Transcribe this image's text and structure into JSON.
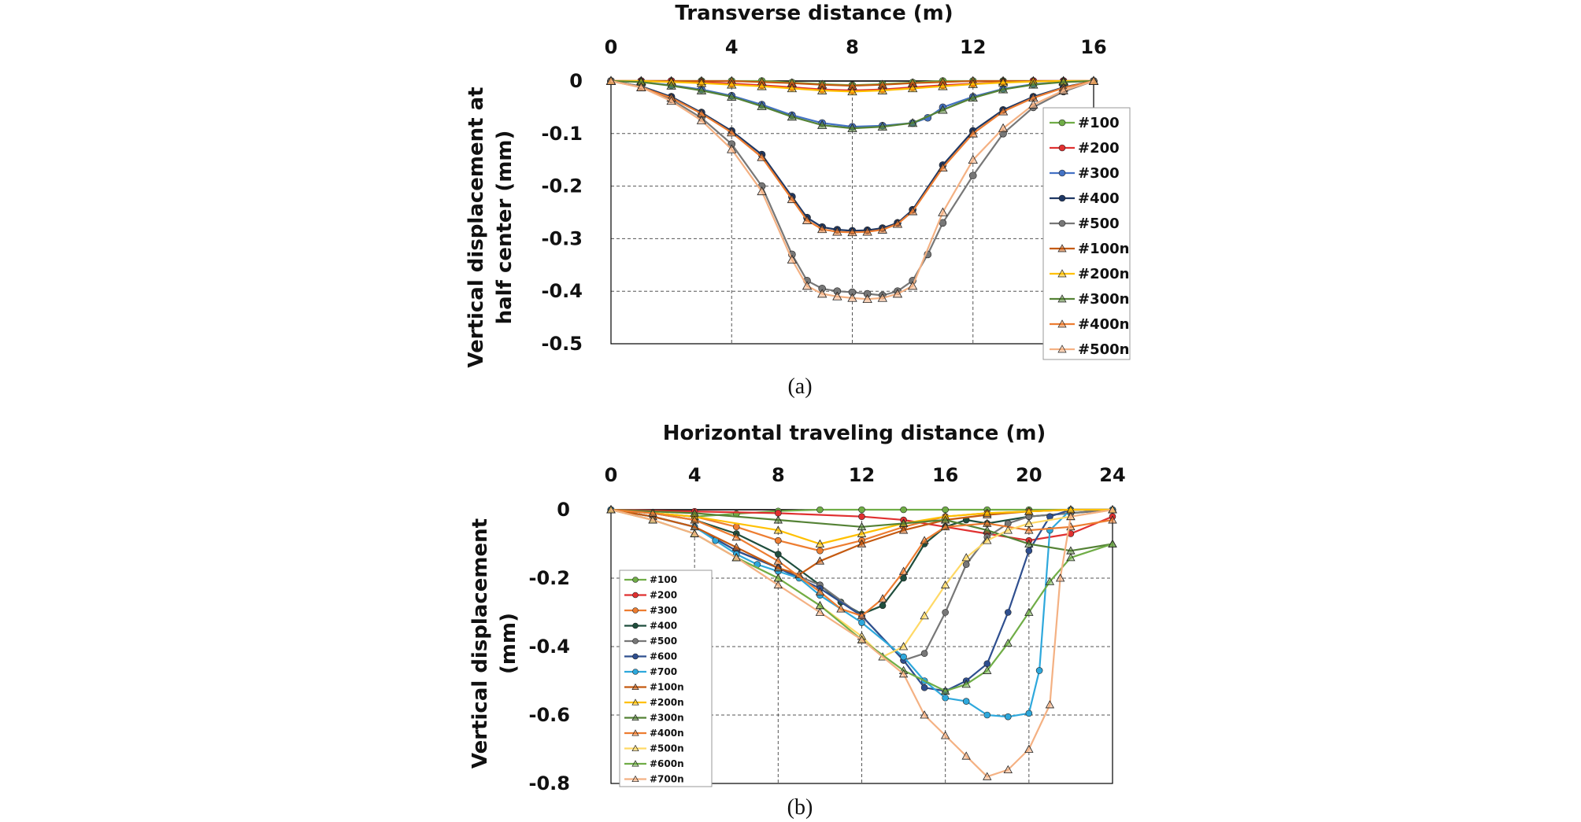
{
  "chart_data": [
    {
      "type": "line",
      "caption": "(a)",
      "xlabel": "Transverse distance (m)",
      "ylabel_lines": [
        "Vertical displacement at",
        "half center (mm)"
      ],
      "xlim": [
        0,
        16
      ],
      "ylim": [
        -0.5,
        0
      ],
      "x_ticks": [
        "0",
        "4",
        "8",
        "12",
        "16"
      ],
      "y_ticks": [
        "0",
        "-0.1",
        "-0.2",
        "-0.3",
        "-0.4",
        "-0.5"
      ],
      "grid": true,
      "legend_position": "right",
      "series": [
        {
          "name": "#100",
          "color": "#70AD47",
          "marker": "circle",
          "x": [
            0,
            1,
            2,
            3,
            4,
            5,
            6,
            7,
            8,
            9,
            10,
            11,
            12,
            13,
            14,
            15,
            16
          ],
          "y": [
            0,
            0,
            0,
            0,
            0,
            0,
            -0.003,
            -0.006,
            -0.008,
            -0.006,
            -0.003,
            0,
            0,
            0,
            0,
            0,
            0
          ]
        },
        {
          "name": "#200",
          "color": "#E03030",
          "marker": "circle",
          "x": [
            0,
            1,
            2,
            3,
            4,
            5,
            6,
            7,
            8,
            9,
            10,
            11,
            12,
            13,
            14,
            15,
            16
          ],
          "y": [
            0,
            0,
            0,
            -0.002,
            -0.005,
            -0.008,
            -0.012,
            -0.016,
            -0.018,
            -0.016,
            -0.012,
            -0.008,
            -0.005,
            -0.002,
            0,
            0,
            0
          ]
        },
        {
          "name": "#300",
          "color": "#4472C4",
          "marker": "circle",
          "x": [
            0,
            1,
            2,
            3,
            4,
            5,
            6,
            7,
            8,
            9,
            10,
            10.5,
            11,
            12,
            13,
            14,
            15,
            16
          ],
          "y": [
            0,
            -0.002,
            -0.008,
            -0.016,
            -0.028,
            -0.045,
            -0.065,
            -0.08,
            -0.087,
            -0.085,
            -0.08,
            -0.07,
            -0.05,
            -0.03,
            -0.015,
            -0.006,
            -0.002,
            0
          ]
        },
        {
          "name": "#400",
          "color": "#1F3864",
          "marker": "circle",
          "x": [
            0,
            1,
            2,
            3,
            4,
            5,
            6,
            6.5,
            7,
            7.5,
            8,
            8.5,
            9,
            9.5,
            10,
            11,
            12,
            13,
            14,
            15,
            16
          ],
          "y": [
            0,
            -0.01,
            -0.03,
            -0.06,
            -0.095,
            -0.14,
            -0.22,
            -0.26,
            -0.278,
            -0.283,
            -0.285,
            -0.284,
            -0.28,
            -0.27,
            -0.245,
            -0.16,
            -0.095,
            -0.055,
            -0.03,
            -0.012,
            0
          ]
        },
        {
          "name": "#500",
          "color": "#777777",
          "marker": "circle",
          "x": [
            0,
            1,
            2,
            3,
            4,
            5,
            6,
            6.5,
            7,
            7.5,
            8,
            8.5,
            9,
            9.5,
            10,
            10.5,
            11,
            12,
            13,
            14,
            15,
            16
          ],
          "y": [
            0,
            -0.01,
            -0.035,
            -0.07,
            -0.12,
            -0.2,
            -0.33,
            -0.38,
            -0.395,
            -0.4,
            -0.402,
            -0.405,
            -0.408,
            -0.4,
            -0.38,
            -0.33,
            -0.27,
            -0.18,
            -0.1,
            -0.05,
            -0.02,
            0
          ]
        },
        {
          "name": "#100n",
          "color": "#C55A11",
          "marker": "triangle",
          "x": [
            0,
            1,
            2,
            3,
            4,
            5,
            6,
            7,
            8,
            9,
            10,
            11,
            12,
            13,
            14,
            15,
            16
          ],
          "y": [
            0,
            0,
            0,
            0,
            0,
            -0.002,
            -0.004,
            -0.007,
            -0.009,
            -0.007,
            -0.004,
            -0.002,
            0,
            0,
            0,
            0,
            0
          ]
        },
        {
          "name": "#200n",
          "color": "#FFC000",
          "marker": "triangle",
          "x": [
            0,
            1,
            2,
            3,
            4,
            5,
            6,
            7,
            8,
            9,
            10,
            11,
            12,
            13,
            14,
            15,
            16
          ],
          "y": [
            0,
            0,
            -0.002,
            -0.004,
            -0.007,
            -0.01,
            -0.014,
            -0.018,
            -0.02,
            -0.018,
            -0.014,
            -0.01,
            -0.006,
            -0.003,
            -0.001,
            0,
            0
          ]
        },
        {
          "name": "#300n",
          "color": "#548235",
          "marker": "triangle",
          "x": [
            0,
            1,
            2,
            3,
            4,
            5,
            6,
            7,
            8,
            9,
            10,
            11,
            12,
            13,
            14,
            15,
            16
          ],
          "y": [
            0,
            -0.002,
            -0.009,
            -0.018,
            -0.03,
            -0.048,
            -0.068,
            -0.084,
            -0.09,
            -0.087,
            -0.08,
            -0.055,
            -0.032,
            -0.016,
            -0.007,
            -0.002,
            0
          ]
        },
        {
          "name": "#400n",
          "color": "#ED7D31",
          "marker": "triangle",
          "x": [
            0,
            1,
            2,
            3,
            4,
            5,
            6,
            6.5,
            7,
            7.5,
            8,
            8.5,
            9,
            9.5,
            10,
            11,
            12,
            13,
            14,
            15,
            16
          ],
          "y": [
            0,
            -0.012,
            -0.032,
            -0.062,
            -0.098,
            -0.145,
            -0.225,
            -0.265,
            -0.282,
            -0.287,
            -0.288,
            -0.287,
            -0.283,
            -0.272,
            -0.248,
            -0.165,
            -0.1,
            -0.058,
            -0.032,
            -0.013,
            0
          ]
        },
        {
          "name": "#500n",
          "color": "#F4B183",
          "marker": "triangle",
          "x": [
            0,
            1,
            2,
            3,
            4,
            5,
            6,
            6.5,
            7,
            7.5,
            8,
            8.5,
            9,
            9.5,
            10,
            11,
            12,
            13,
            14,
            15,
            16
          ],
          "y": [
            0,
            -0.012,
            -0.038,
            -0.075,
            -0.13,
            -0.21,
            -0.34,
            -0.39,
            -0.405,
            -0.41,
            -0.413,
            -0.415,
            -0.413,
            -0.405,
            -0.39,
            -0.25,
            -0.15,
            -0.09,
            -0.045,
            -0.018,
            0
          ]
        }
      ]
    },
    {
      "type": "line",
      "caption": "(b)",
      "xlabel": "Horizontal traveling distance (m)",
      "ylabel_lines": [
        "Vertical displacement",
        "(mm)"
      ],
      "xlim": [
        0,
        24
      ],
      "ylim": [
        -0.8,
        0
      ],
      "x_ticks": [
        "0",
        "4",
        "8",
        "12",
        "16",
        "20",
        "24"
      ],
      "y_ticks": [
        "0",
        "-0.2",
        "-0.4",
        "-0.6",
        "-0.8"
      ],
      "grid": true,
      "legend_position": "left",
      "series": [
        {
          "name": "#100",
          "color": "#70AD47",
          "marker": "circle",
          "x": [
            0,
            2,
            4,
            6,
            8,
            10,
            12,
            14,
            16,
            18,
            20,
            22,
            24
          ],
          "y": [
            0,
            -0.01,
            -0.02,
            -0.012,
            -0.004,
            0,
            0,
            0,
            0,
            0,
            0,
            0,
            0
          ]
        },
        {
          "name": "#200",
          "color": "#E03030",
          "marker": "circle",
          "x": [
            0,
            4,
            8,
            12,
            14,
            16,
            18,
            20,
            22,
            24
          ],
          "y": [
            0,
            -0.005,
            -0.01,
            -0.02,
            -0.03,
            -0.05,
            -0.07,
            -0.09,
            -0.07,
            -0.02
          ]
        },
        {
          "name": "#300",
          "color": "#ED7D31",
          "marker": "circle",
          "x": [
            0,
            2,
            4,
            6,
            8,
            10,
            12,
            14,
            16,
            18,
            20,
            22,
            24
          ],
          "y": [
            0,
            -0.01,
            -0.02,
            -0.05,
            -0.09,
            -0.12,
            -0.09,
            -0.05,
            -0.02,
            -0.01,
            -0.005,
            0,
            0
          ]
        },
        {
          "name": "#400",
          "color": "#1F4E3D",
          "marker": "circle",
          "x": [
            0,
            2,
            4,
            6,
            8,
            10,
            11,
            12,
            13,
            14,
            15,
            16,
            17,
            18,
            20,
            22,
            24
          ],
          "y": [
            0,
            -0.01,
            -0.03,
            -0.07,
            -0.13,
            -0.22,
            -0.27,
            -0.305,
            -0.28,
            -0.2,
            -0.1,
            -0.05,
            -0.03,
            -0.04,
            -0.02,
            -0.01,
            0
          ]
        },
        {
          "name": "#500",
          "color": "#777777",
          "marker": "circle",
          "x": [
            0,
            2,
            4,
            6,
            8,
            10,
            12,
            14,
            15,
            16,
            17,
            18,
            19,
            20,
            22,
            24
          ],
          "y": [
            0,
            -0.02,
            -0.05,
            -0.12,
            -0.17,
            -0.22,
            -0.31,
            -0.44,
            -0.42,
            -0.3,
            -0.16,
            -0.08,
            -0.04,
            -0.02,
            -0.01,
            0
          ]
        },
        {
          "name": "#600",
          "color": "#2F4F8F",
          "marker": "circle",
          "x": [
            0,
            2,
            4,
            6,
            8,
            10,
            12,
            14,
            15,
            16,
            17,
            18,
            19,
            20,
            21,
            22,
            24
          ],
          "y": [
            0,
            -0.02,
            -0.05,
            -0.12,
            -0.17,
            -0.23,
            -0.31,
            -0.44,
            -0.52,
            -0.53,
            -0.5,
            -0.45,
            -0.3,
            -0.12,
            -0.02,
            0,
            0
          ]
        },
        {
          "name": "#700",
          "color": "#2EA8DC",
          "marker": "circle",
          "x": [
            0,
            2,
            4,
            5,
            6,
            7,
            8,
            9,
            10,
            12,
            14,
            15,
            16,
            17,
            18,
            19,
            20,
            20.5,
            21,
            22,
            24
          ],
          "y": [
            0,
            -0.02,
            -0.05,
            -0.09,
            -0.13,
            -0.16,
            -0.18,
            -0.2,
            -0.25,
            -0.33,
            -0.43,
            -0.5,
            -0.55,
            -0.56,
            -0.6,
            -0.605,
            -0.595,
            -0.47,
            -0.06,
            0,
            0
          ]
        },
        {
          "name": "#100n",
          "color": "#C55A11",
          "marker": "triangle",
          "x": [
            0,
            2,
            4,
            6,
            8,
            9,
            10,
            12,
            14,
            16,
            18,
            20,
            22,
            24
          ],
          "y": [
            0,
            -0.02,
            -0.05,
            -0.11,
            -0.17,
            -0.19,
            -0.15,
            -0.1,
            -0.06,
            -0.03,
            -0.015,
            -0.005,
            0,
            0
          ]
        },
        {
          "name": "#200n",
          "color": "#FFC000",
          "marker": "triangle",
          "x": [
            0,
            4,
            8,
            10,
            12,
            14,
            16,
            18,
            20,
            22,
            24
          ],
          "y": [
            0,
            -0.02,
            -0.06,
            -0.1,
            -0.07,
            -0.04,
            -0.02,
            -0.01,
            -0.005,
            0,
            0
          ]
        },
        {
          "name": "#300n",
          "color": "#548235",
          "marker": "triangle",
          "x": [
            0,
            4,
            8,
            12,
            14,
            16,
            18,
            20,
            22,
            24
          ],
          "y": [
            0,
            -0.01,
            -0.03,
            -0.05,
            -0.04,
            -0.03,
            -0.06,
            -0.1,
            -0.12,
            -0.1
          ]
        },
        {
          "name": "#400n",
          "color": "#ED7D31",
          "marker": "triangle",
          "x": [
            0,
            2,
            4,
            6,
            8,
            10,
            11,
            12,
            13,
            14,
            15,
            16,
            18,
            20,
            22,
            24
          ],
          "y": [
            0,
            -0.01,
            -0.03,
            -0.08,
            -0.15,
            -0.24,
            -0.29,
            -0.31,
            -0.26,
            -0.18,
            -0.09,
            -0.05,
            -0.04,
            -0.06,
            -0.05,
            -0.03
          ]
        },
        {
          "name": "#500n",
          "color": "#FFD966",
          "marker": "triangle",
          "x": [
            0,
            2,
            4,
            6,
            8,
            10,
            12,
            13,
            14,
            15,
            16,
            17,
            18,
            19,
            20,
            22,
            24
          ],
          "y": [
            0,
            -0.03,
            -0.07,
            -0.14,
            -0.2,
            -0.28,
            -0.37,
            -0.43,
            -0.4,
            -0.31,
            -0.22,
            -0.14,
            -0.09,
            -0.06,
            -0.04,
            -0.02,
            0
          ]
        },
        {
          "name": "#600n",
          "color": "#70AD47",
          "marker": "triangle",
          "x": [
            0,
            2,
            4,
            6,
            8,
            10,
            12,
            14,
            16,
            17,
            18,
            19,
            20,
            21,
            22,
            24
          ],
          "y": [
            0,
            -0.03,
            -0.07,
            -0.14,
            -0.2,
            -0.28,
            -0.38,
            -0.47,
            -0.53,
            -0.51,
            -0.47,
            -0.39,
            -0.3,
            -0.21,
            -0.14,
            -0.1
          ]
        },
        {
          "name": "#700n",
          "color": "#F4B183",
          "marker": "triangle",
          "x": [
            0,
            2,
            4,
            6,
            8,
            10,
            12,
            14,
            15,
            16,
            17,
            18,
            19,
            20,
            21,
            21.5,
            22,
            24
          ],
          "y": [
            0,
            -0.03,
            -0.07,
            -0.14,
            -0.22,
            -0.3,
            -0.38,
            -0.48,
            -0.6,
            -0.66,
            -0.72,
            -0.78,
            -0.76,
            -0.7,
            -0.57,
            -0.2,
            -0.02,
            0
          ]
        }
      ]
    }
  ]
}
